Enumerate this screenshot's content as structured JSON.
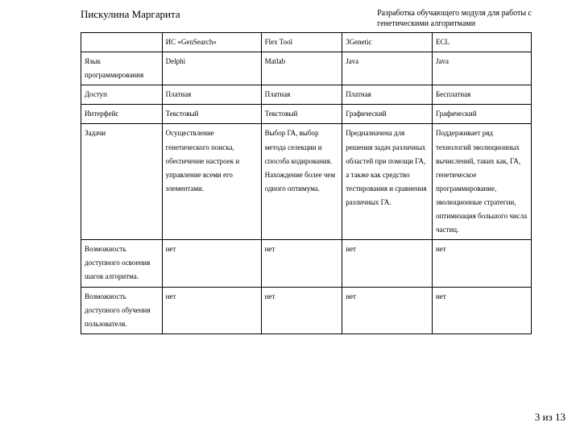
{
  "header": {
    "author": "Пискулина Маргарита",
    "title_line1": "Разработка обучающего модуля для работы с",
    "title_line2": "генетическими алгоритмами"
  },
  "table": {
    "columns": [
      "",
      "ИС «GenSearch»",
      "Flex Tool",
      "3Genetic",
      "ECL"
    ],
    "rows": [
      [
        "Язык программирования",
        "Delphi",
        "Matlab",
        "Java",
        "Java"
      ],
      [
        "Доступ",
        "Платная",
        "Платная",
        "Платная",
        "Бесплатная"
      ],
      [
        "Интерфейс",
        "Текстовый",
        "Текстовый",
        "Графический",
        "Графический"
      ],
      [
        "Задачи",
        "Осуществление генетического поиска, обеспечение настроек и управление всеми его элементами.",
        "Выбор ГА, выбор метода селекции и способа кодирования. Нахождение более чем одного оптимума.",
        "Предназначена для решения задач различных областей при помощи ГА, а также как средство тестирования и сравнения различных ГА.",
        "Поддерживает ряд технологий эволюционных вычислений, таких как, ГА, генетическое программирование, эволюционные стратегии, оптимизация большого числа частиц."
      ],
      [
        "Возможность доступного освоения   шагов алгоритма.",
        " нет",
        "нет",
        "нет",
        "нет"
      ],
      [
        "Возможность доступного обучения пользователя.",
        "нет",
        "нет",
        "нет",
        "нет"
      ]
    ]
  },
  "pager": {
    "current": "3",
    "sep": "из",
    "total": "13"
  }
}
